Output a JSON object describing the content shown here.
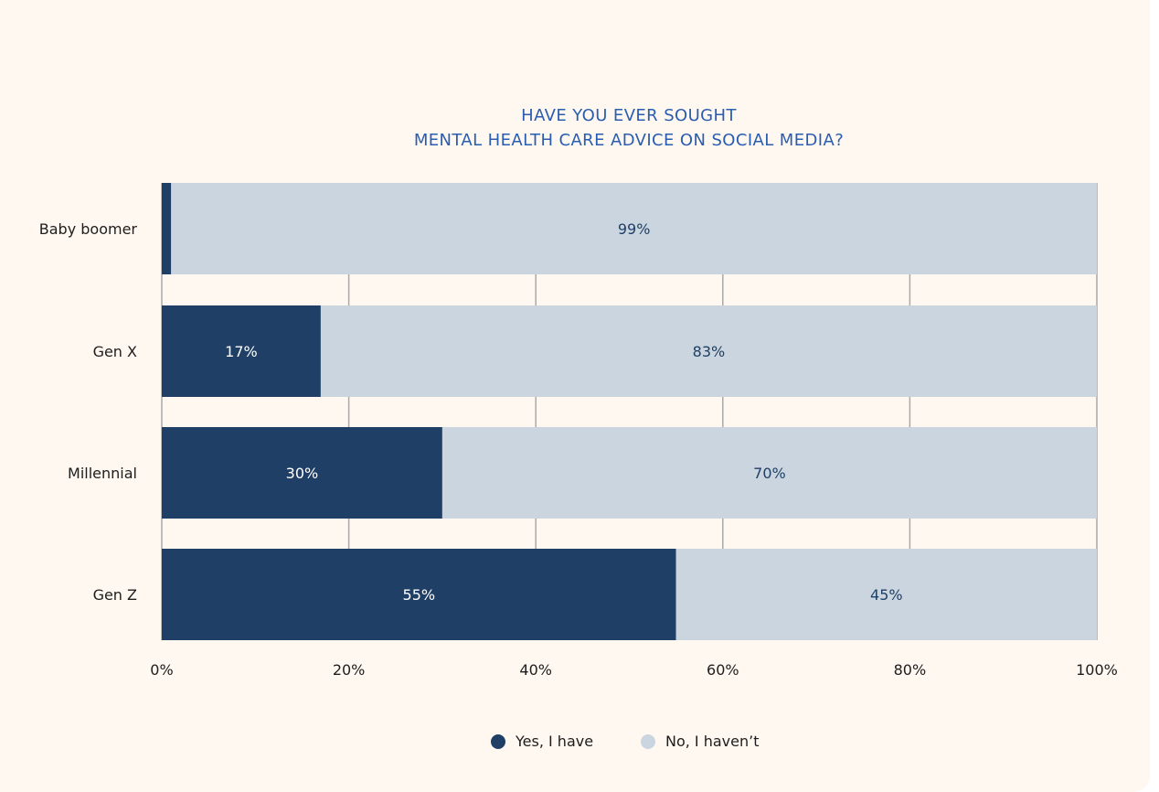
{
  "chart_data": {
    "type": "bar",
    "orientation": "horizontal",
    "stacked": true,
    "title": "HAVE YOU EVER SOUGHT\nMENTAL HEALTH CARE ADVICE ON SOCIAL MEDIA?",
    "title_lines": [
      "HAVE YOU EVER SOUGHT",
      "MENTAL HEALTH CARE ADVICE ON SOCIAL MEDIA?"
    ],
    "categories": [
      "Baby boomer",
      "Gen X",
      "Millennial",
      "Gen Z"
    ],
    "series": [
      {
        "name": "Yes, I have",
        "color": "#1f3f66",
        "label_color": "#ffffff",
        "values": [
          1,
          17,
          30,
          55
        ],
        "labels": [
          "",
          "17%",
          "30%",
          "55%"
        ]
      },
      {
        "name": "No, I haven’t",
        "color": "#cbd5df",
        "label_color": "#1f3f66",
        "values": [
          99,
          83,
          70,
          45
        ],
        "labels": [
          "99%",
          "83%",
          "70%",
          "45%"
        ]
      }
    ],
    "xlim": [
      0,
      100
    ],
    "x_ticks": [
      "0%",
      "20%",
      "40%",
      "60%",
      "80%",
      "100%"
    ],
    "grid": true,
    "legend_position": "bottom-center",
    "title_color": "#2a5db0",
    "background": "#fff8f1"
  }
}
